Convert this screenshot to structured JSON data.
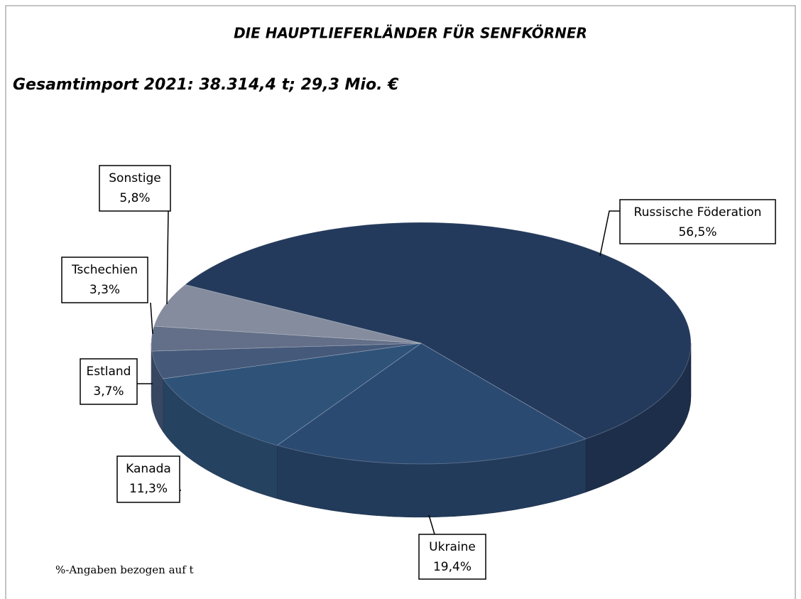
{
  "chart_data": {
    "type": "pie",
    "title": "DIE HAUPTLIEFERLÄNDER FÜR SENFKÖRNER",
    "subtitle": "Gesamtimport 2021: 38.314,4 t;  29,3 Mio. €",
    "note": "%-Angaben bezogen auf  t",
    "categories": [
      "Russische Föderation",
      "Ukraine",
      "Kanada",
      "Estland",
      "Tschechien",
      "Sonstige"
    ],
    "values": [
      56.5,
      19.4,
      11.3,
      3.7,
      3.3,
      5.8
    ],
    "value_labels": [
      "56,5%",
      "19,4%",
      "11,3%",
      "3,7%",
      "3,3%",
      "5,8%"
    ],
    "colors": [
      "#243a5c",
      "#2b4a72",
      "#2f5279",
      "#45597a",
      "#636f88",
      "#848c9e"
    ]
  }
}
